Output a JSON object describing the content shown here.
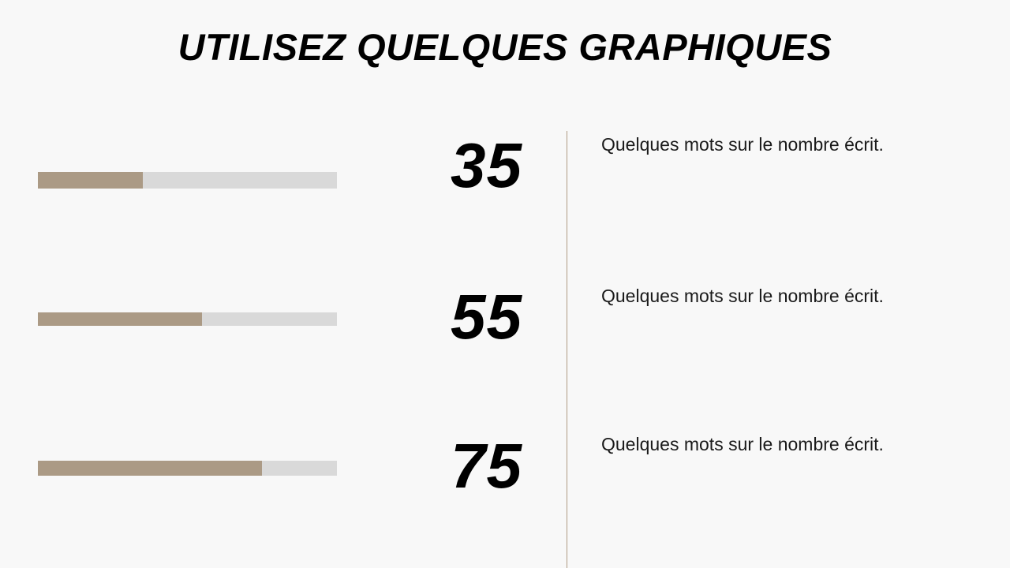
{
  "slide": {
    "title": "UTILISEZ QUELQUES GRAPHIQUES",
    "accent_color": "#ab9a85",
    "track_color": "#d9d9d9"
  },
  "stats": [
    {
      "number": "35",
      "progress_percent": 35,
      "text": "Quelques mots sur le nombre écrit."
    },
    {
      "number": "55",
      "progress_percent": 55,
      "text": "Quelques mots sur le nombre écrit."
    },
    {
      "number": "75",
      "progress_percent": 75,
      "text": "Quelques mots sur le nombre écrit."
    }
  ]
}
